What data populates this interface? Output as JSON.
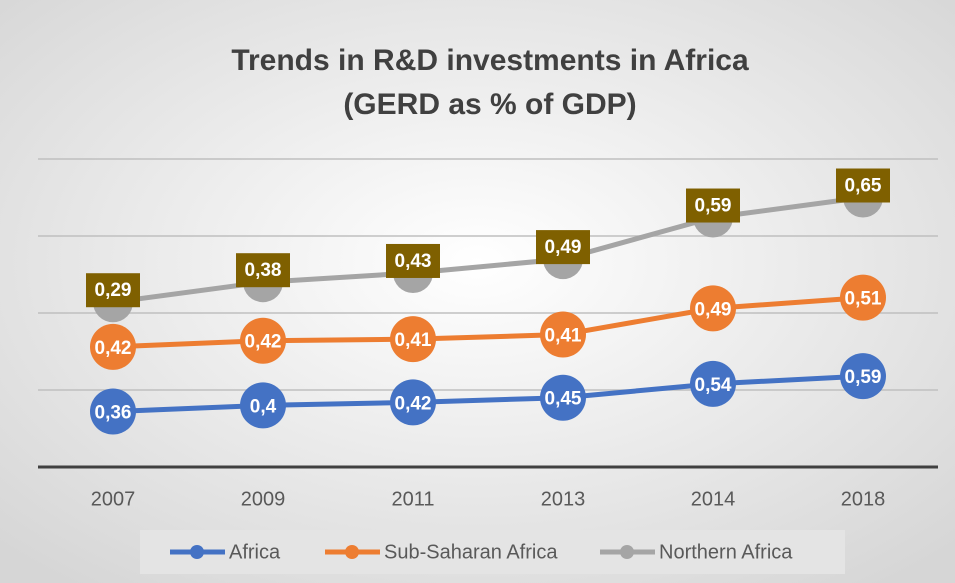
{
  "chart_data": {
    "type": "line",
    "stacked": true,
    "title": "Trends in R&D investments in Africa",
    "subtitle": "(GERD as % of GDP)",
    "categories": [
      "2007",
      "2009",
      "2011",
      "2013",
      "2014",
      "2018"
    ],
    "series": [
      {
        "name": "Africa",
        "color": "#4472c4",
        "label_style": "circle",
        "values": [
          0.36,
          0.4,
          0.42,
          0.45,
          0.54,
          0.59
        ],
        "value_labels": [
          "0,36",
          "0,4",
          "0,42",
          "0,45",
          "0,54",
          "0,59"
        ]
      },
      {
        "name": "Sub-Saharan Africa",
        "color": "#ed7d31",
        "label_style": "circle",
        "values": [
          0.42,
          0.42,
          0.41,
          0.41,
          0.49,
          0.51
        ],
        "value_labels": [
          "0,42",
          "0,42",
          "0,41",
          "0,41",
          "0,49",
          "0,51"
        ]
      },
      {
        "name": "Northern Africa",
        "color": "#a5a5a5",
        "label_style": "box",
        "label_color": "#7f6000",
        "values": [
          0.29,
          0.38,
          0.43,
          0.49,
          0.59,
          0.65
        ],
        "value_labels": [
          "0,29",
          "0,38",
          "0,43",
          "0,49",
          "0,59",
          "0,65"
        ]
      }
    ],
    "ylim": [
      0,
      2
    ],
    "yticks": [
      0,
      0.5,
      1,
      1.5,
      2
    ],
    "grid": true
  }
}
